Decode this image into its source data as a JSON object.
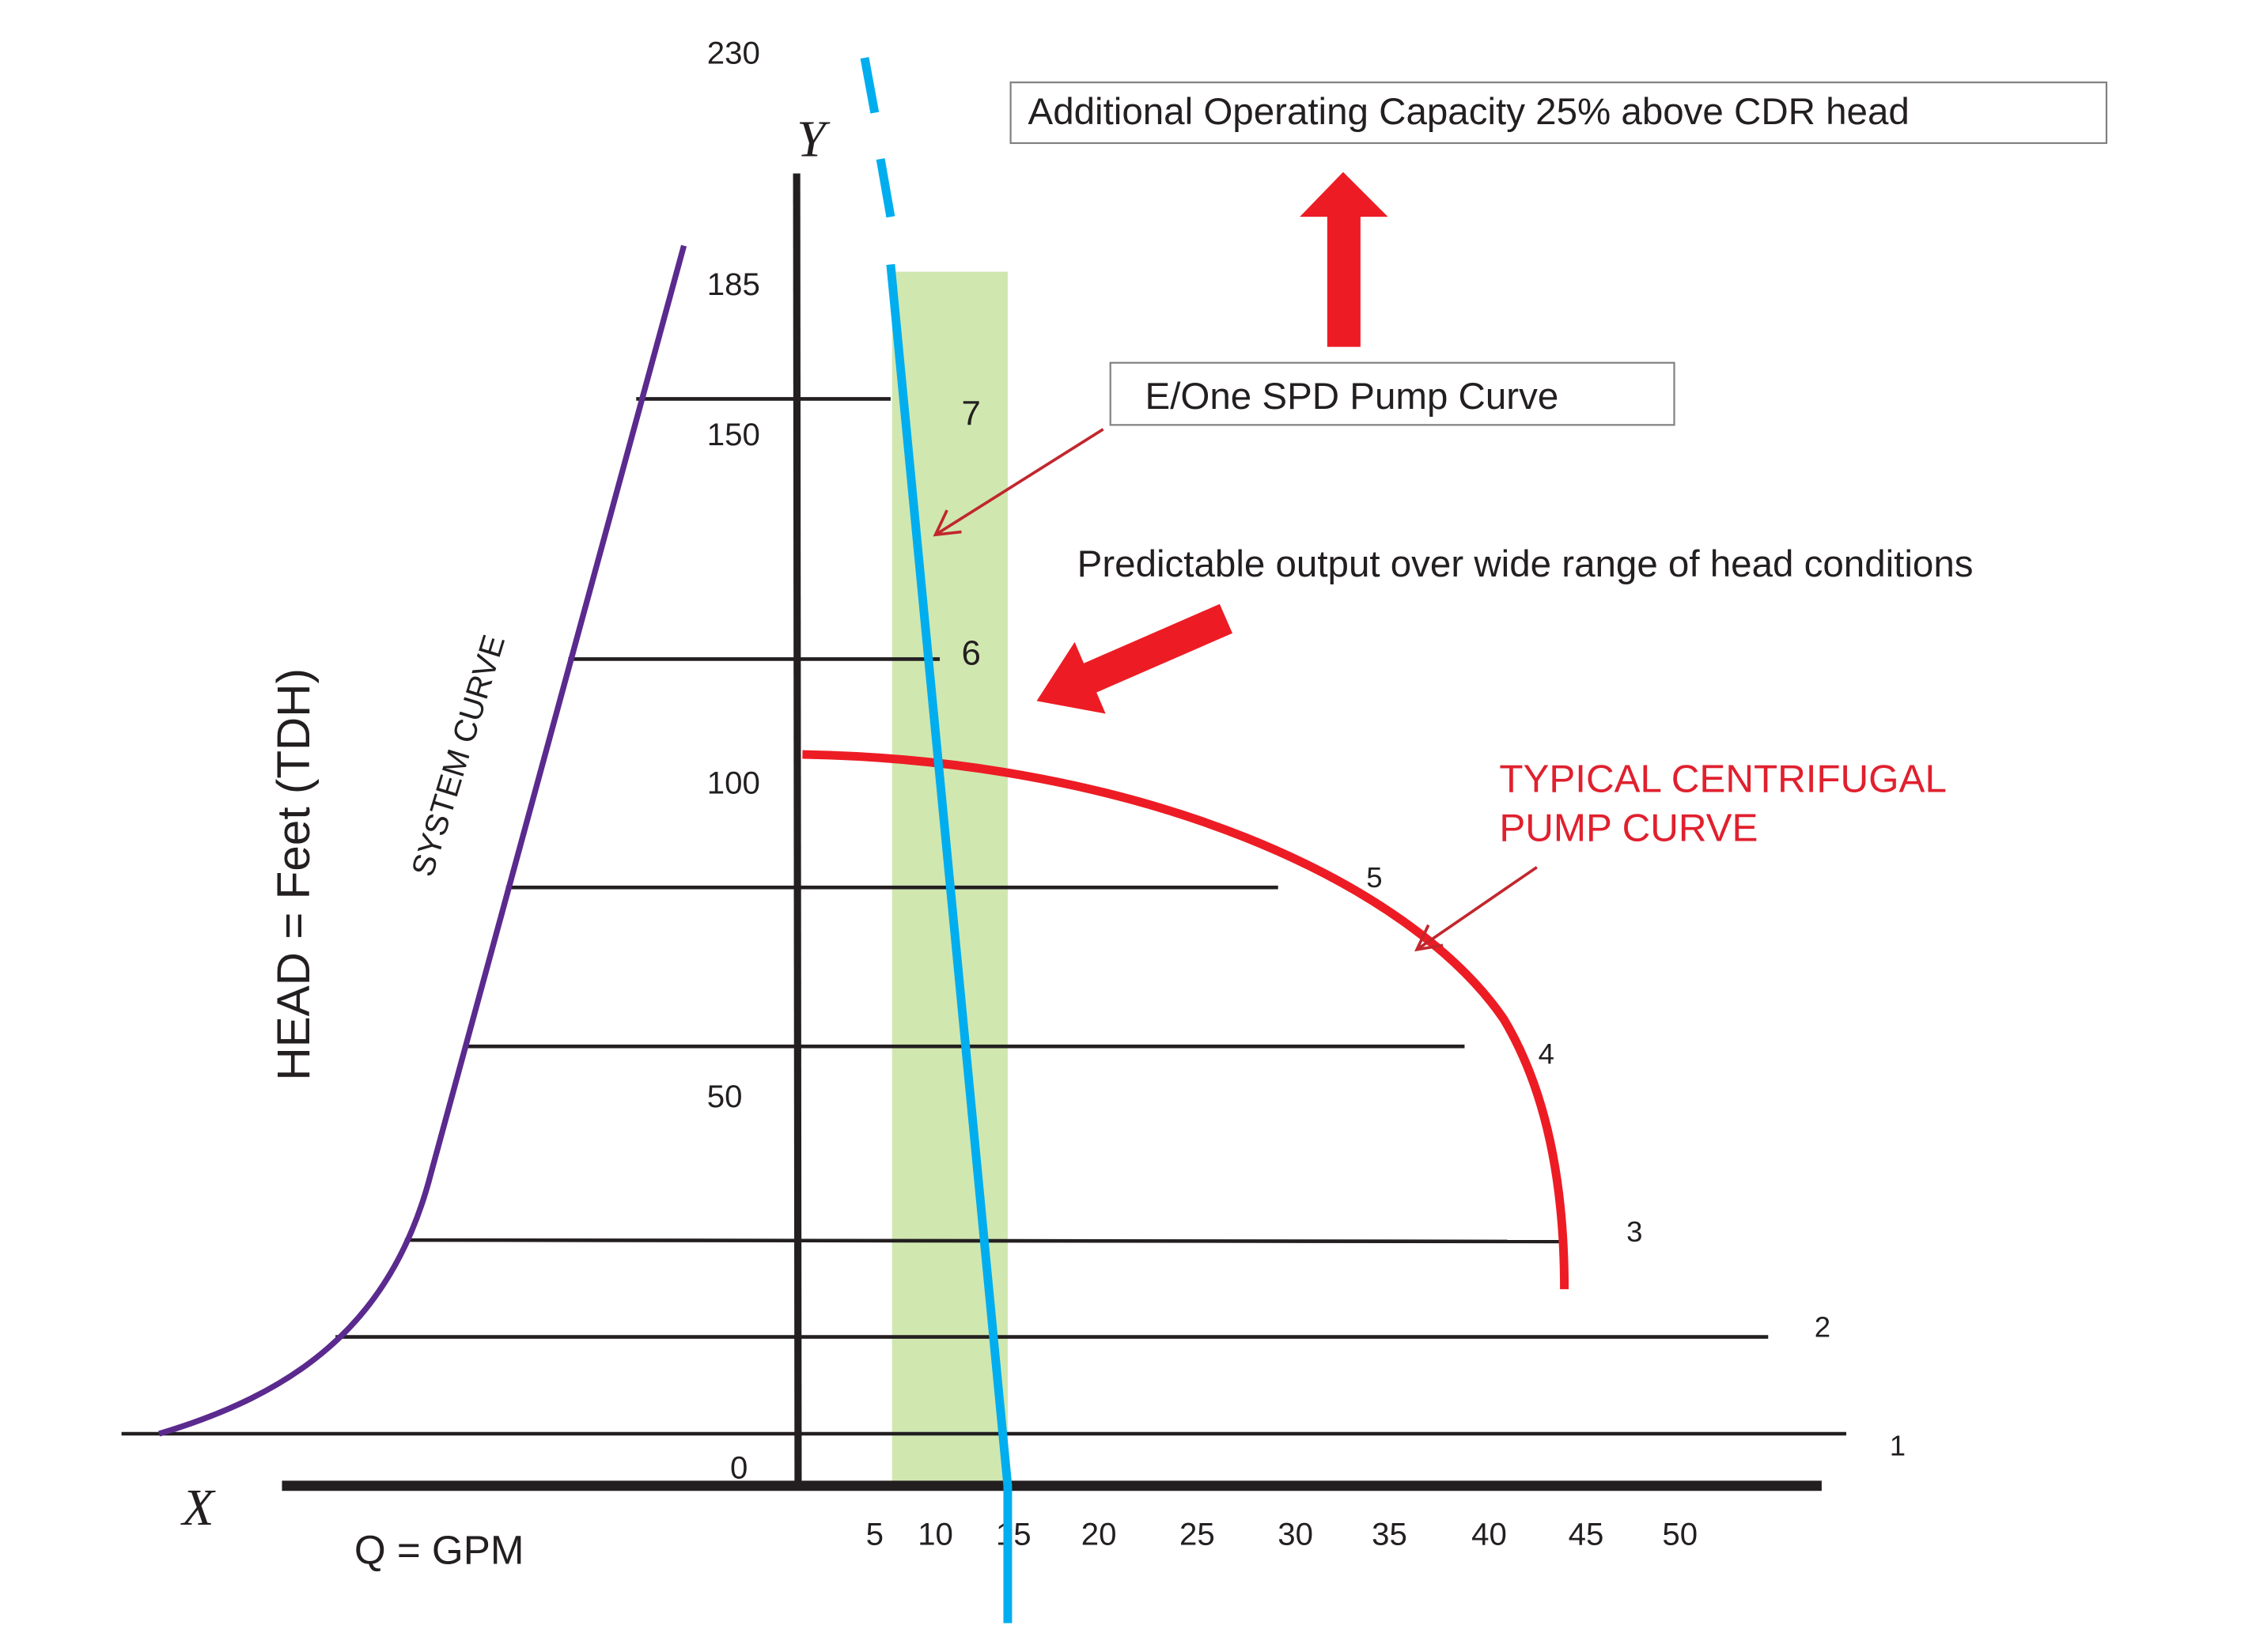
{
  "axes": {
    "y_symbol": "Y",
    "x_symbol": "X",
    "y_label": "HEAD = Feet (TDH)",
    "x_label": "Q = GPM",
    "y_ticks": [
      "230",
      "185",
      "150",
      "100",
      "50",
      "0"
    ],
    "x_ticks": [
      "5",
      "10",
      "15",
      "20",
      "25",
      "30",
      "35",
      "40",
      "45",
      "50"
    ]
  },
  "levels": [
    "1",
    "2",
    "3",
    "4",
    "5",
    "6",
    "7"
  ],
  "curves": {
    "system_curve_label": "SYSTEM CURVE",
    "centrifugal_label_line1": "TYPICAL CENTRIFUGAL",
    "centrifugal_label_line2": "PUMP CURVE"
  },
  "callouts": {
    "additional_capacity": "Additional Operating Capacity 25% above CDR head",
    "eone_pump_curve": "E/One SPD Pump Curve",
    "predictable_output": "Predictable output over wide range of head conditions"
  },
  "colors": {
    "system_curve": "#5b2a8e",
    "eone_curve": "#00aeef",
    "centrifugal_curve": "#ed1c24",
    "operating_band": "#d0e7b0",
    "arrows": "#ed1c24",
    "axis": "#231f20"
  }
}
